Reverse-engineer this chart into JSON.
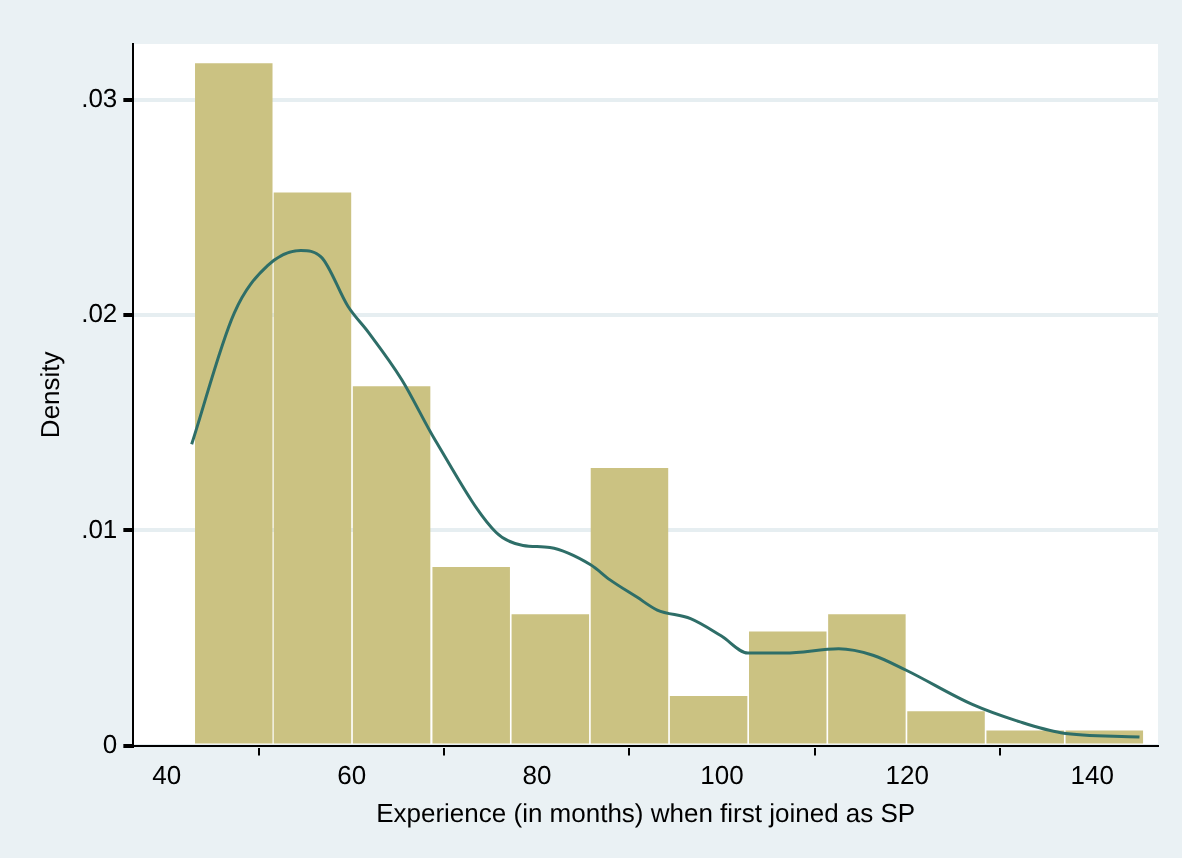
{
  "chart_data": {
    "type": "histogram",
    "xlabel": "Experience (in months) when first joined as SP",
    "ylabel": "Density",
    "bins": [
      43,
      51.5,
      60,
      68.6,
      77.2,
      85.7,
      94.3,
      102.8,
      111.4,
      119.9,
      128.5,
      137,
      145.6
    ],
    "values": [
      0.0317,
      0.0257,
      0.0167,
      0.0083,
      0.0061,
      0.0129,
      0.0023,
      0.0053,
      0.0061,
      0.0016,
      0.0007,
      0.0007
    ],
    "color": "#cbc282",
    "series": [
      {
        "type": "line",
        "color": "#2e6e68",
        "x": [
          42.7,
          47.3,
          50.9,
          54.5,
          56.7,
          59.6,
          61.8,
          65.4,
          69,
          75.6,
          78.5,
          81.4,
          85.8,
          87.9,
          90.8,
          93,
          96.6,
          99.9,
          102.8,
          106.8,
          112.6,
          116.3,
          119.9,
          127.1,
          132.2,
          136.6,
          145.1
        ],
        "values": [
          0.014,
          0.0201,
          0.0223,
          0.023,
          0.0227,
          0.0204,
          0.0192,
          0.017,
          0.0142,
          0.0099,
          0.0093,
          0.0092,
          0.0084,
          0.0077,
          0.0069,
          0.0063,
          0.0059,
          0.0051,
          0.0043,
          0.0043,
          0.0045,
          0.0042,
          0.0035,
          0.0019,
          0.0011,
          0.0006,
          0.0004
        ]
      }
    ],
    "xlim": [
      36.4,
      147.1
    ],
    "xticks": [
      40,
      60,
      80,
      100,
      120,
      140
    ],
    "ylim": [
      0,
      0.0326
    ],
    "yticks": [
      {
        "value": 0,
        "label": "0"
      },
      {
        "value": 0.01,
        "label": ".01"
      },
      {
        "value": 0.02,
        "label": ".02"
      },
      {
        "value": 0.03,
        "label": ".03"
      }
    ],
    "grid": "y",
    "legend": false,
    "marker": "none"
  }
}
